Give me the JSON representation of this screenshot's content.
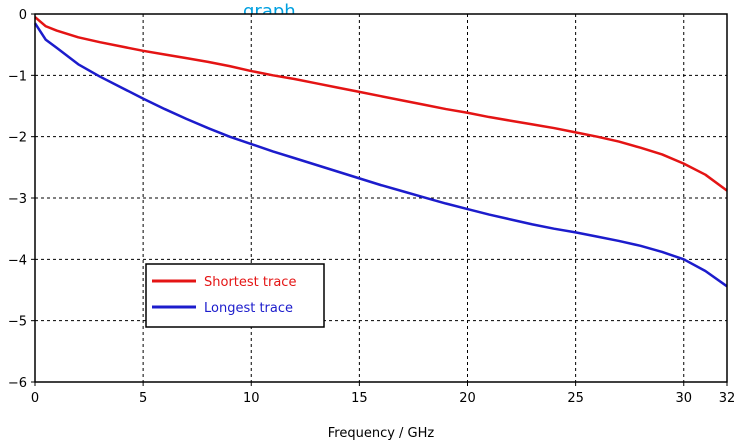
{
  "header_fragment": {
    "text": "graph",
    "color": "#00a0e0"
  },
  "chart_data": {
    "type": "line",
    "title": "",
    "xlabel": "Frequency / GHz",
    "ylabel": "",
    "xlim": [
      0,
      32
    ],
    "ylim": [
      -6,
      0
    ],
    "x_ticks": [
      0,
      5,
      10,
      15,
      20,
      25,
      30,
      32
    ],
    "y_ticks": [
      0,
      -1,
      -2,
      -3,
      -4,
      -5,
      -6
    ],
    "grid": true,
    "legend_position": "lower-left",
    "series": [
      {
        "name": "Shortest trace",
        "color": "#e41414",
        "x": [
          0,
          0.5,
          1,
          2,
          3,
          4,
          5,
          6,
          7,
          8,
          9,
          10,
          11,
          12,
          13,
          14,
          15,
          16,
          17,
          18,
          19,
          20,
          21,
          22,
          23,
          24,
          25,
          26,
          27,
          28,
          29,
          30,
          31,
          32
        ],
        "y": [
          -0.05,
          -0.2,
          -0.27,
          -0.38,
          -0.46,
          -0.53,
          -0.6,
          -0.66,
          -0.72,
          -0.78,
          -0.85,
          -0.93,
          -1.0,
          -1.06,
          -1.13,
          -1.2,
          -1.27,
          -1.34,
          -1.41,
          -1.48,
          -1.55,
          -1.61,
          -1.68,
          -1.74,
          -1.8,
          -1.86,
          -1.93,
          -2.0,
          -2.08,
          -2.18,
          -2.29,
          -2.44,
          -2.62,
          -2.88
        ]
      },
      {
        "name": "Longest trace",
        "color": "#1c1ccc",
        "x": [
          0,
          0.5,
          1,
          2,
          3,
          4,
          5,
          6,
          7,
          8,
          9,
          10,
          11,
          12,
          13,
          14,
          15,
          16,
          17,
          18,
          19,
          20,
          21,
          22,
          23,
          24,
          25,
          26,
          27,
          28,
          29,
          30,
          31,
          32
        ],
        "y": [
          -0.15,
          -0.42,
          -0.55,
          -0.82,
          -1.02,
          -1.2,
          -1.38,
          -1.55,
          -1.71,
          -1.86,
          -2.0,
          -2.12,
          -2.24,
          -2.35,
          -2.46,
          -2.57,
          -2.68,
          -2.79,
          -2.89,
          -2.99,
          -3.09,
          -3.18,
          -3.27,
          -3.35,
          -3.43,
          -3.5,
          -3.56,
          -3.63,
          -3.7,
          -3.78,
          -3.88,
          -4.0,
          -4.19,
          -4.44
        ]
      }
    ]
  }
}
